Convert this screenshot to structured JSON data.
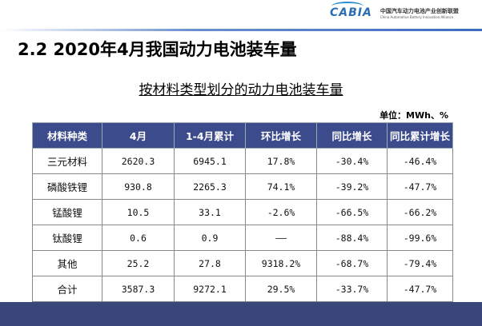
{
  "logo": {
    "mark": "CABIA",
    "cn": "中国汽车动力电池产业创新联盟",
    "en": "China Automotive Battery Innovation Alliance"
  },
  "slide_title": "2.2  2020年4月我国动力电池装车量",
  "table_title": "按材料类型划分的动力电池装车量",
  "unit": "单位：MWh、%",
  "table": {
    "headers": [
      "材料种类",
      "4月",
      "1-4月累计",
      "环比增长",
      "同比增长",
      "同比累计增长"
    ],
    "rows": [
      [
        "三元材料",
        "2620.3",
        "6945.1",
        "17.8%",
        "-30.4%",
        "-46.4%"
      ],
      [
        "磷酸铁锂",
        "930.8",
        "2265.3",
        "74.1%",
        "-39.2%",
        "-47.7%"
      ],
      [
        "锰酸锂",
        "10.5",
        "33.1",
        "-2.6%",
        "-66.5%",
        "-66.2%"
      ],
      [
        "钛酸锂",
        "0.6",
        "0.9",
        "——",
        "-88.4%",
        "-99.6%"
      ],
      [
        "其他",
        "25.2",
        "27.8",
        "9318.2%",
        "-68.7%",
        "-79.4%"
      ],
      [
        "合计",
        "3587.3",
        "9272.1",
        "29.5%",
        "-33.7%",
        "-47.7%"
      ]
    ]
  }
}
